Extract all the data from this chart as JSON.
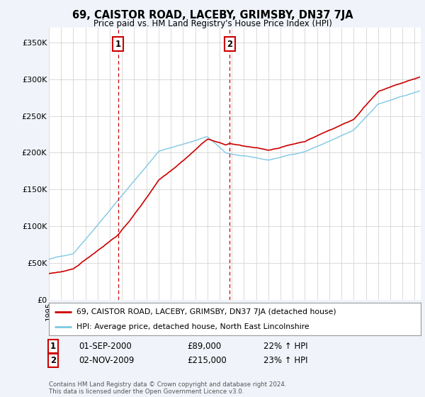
{
  "title": "69, CAISTOR ROAD, LACEBY, GRIMSBY, DN37 7JA",
  "subtitle": "Price paid vs. HM Land Registry's House Price Index (HPI)",
  "legend_line1": "69, CAISTOR ROAD, LACEBY, GRIMSBY, DN37 7JA (detached house)",
  "legend_line2": "HPI: Average price, detached house, North East Lincolnshire",
  "table_row1_num": "1",
  "table_row1_date": "01-SEP-2000",
  "table_row1_price": "£89,000",
  "table_row1_hpi": "22% ↑ HPI",
  "table_row2_num": "2",
  "table_row2_date": "02-NOV-2009",
  "table_row2_price": "£215,000",
  "table_row2_hpi": "23% ↑ HPI",
  "footnote": "Contains HM Land Registry data © Crown copyright and database right 2024.\nThis data is licensed under the Open Government Licence v3.0.",
  "sale1_year": 2000.67,
  "sale1_price": 89000,
  "sale2_year": 2009.84,
  "sale2_price": 215000,
  "hpi_color": "#7ec8e3",
  "price_color": "#cc0000",
  "background_color": "#f0f4fa",
  "plot_bg_color": "#ffffff",
  "ylim": [
    0,
    370000
  ],
  "xlim_start": 1995.0,
  "xlim_end": 2025.5
}
